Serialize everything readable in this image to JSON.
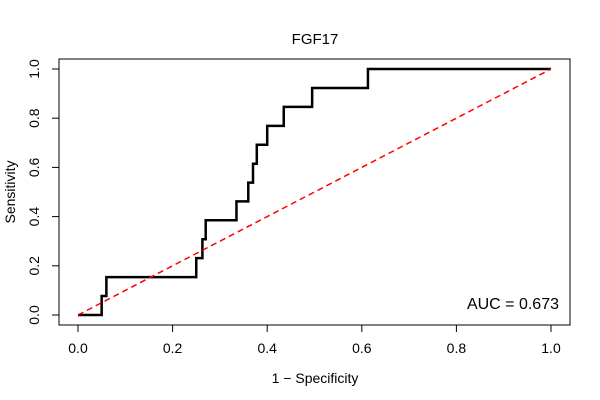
{
  "chart_data": {
    "type": "line",
    "title": "FGF17",
    "xlabel": "1 − Specificity",
    "ylabel": "Sensitivity",
    "xlim": [
      0,
      1
    ],
    "ylim": [
      0,
      1
    ],
    "xticks": [
      0.0,
      0.2,
      0.4,
      0.6,
      0.8,
      1.0
    ],
    "yticks": [
      0.0,
      0.2,
      0.4,
      0.6,
      0.8,
      1.0
    ],
    "xtick_labels": [
      "0.0",
      "0.2",
      "0.4",
      "0.6",
      "0.8",
      "1.0"
    ],
    "ytick_labels": [
      "0.0",
      "0.2",
      "0.4",
      "0.6",
      "0.8",
      "1.0"
    ],
    "annotation": "AUC = 0.673",
    "grid": false,
    "series": [
      {
        "color": "#000000",
        "style": "solid",
        "x": [
          0.0,
          0.05,
          0.05,
          0.06,
          0.06,
          0.25,
          0.25,
          0.263,
          0.263,
          0.27,
          0.27,
          0.335,
          0.335,
          0.36,
          0.36,
          0.37,
          0.37,
          0.378,
          0.378,
          0.4,
          0.4,
          0.435,
          0.435,
          0.495,
          0.495,
          0.613,
          0.613,
          1.0
        ],
        "y": [
          0.0,
          0.0,
          0.077,
          0.077,
          0.154,
          0.154,
          0.231,
          0.231,
          0.308,
          0.308,
          0.385,
          0.385,
          0.462,
          0.462,
          0.538,
          0.538,
          0.615,
          0.615,
          0.692,
          0.692,
          0.769,
          0.769,
          0.846,
          0.846,
          0.923,
          0.923,
          1.0,
          1.0
        ]
      },
      {
        "color": "#ff0000",
        "style": "dashed",
        "x": [
          0.0,
          1.0
        ],
        "y": [
          0.0,
          1.0
        ]
      }
    ]
  }
}
